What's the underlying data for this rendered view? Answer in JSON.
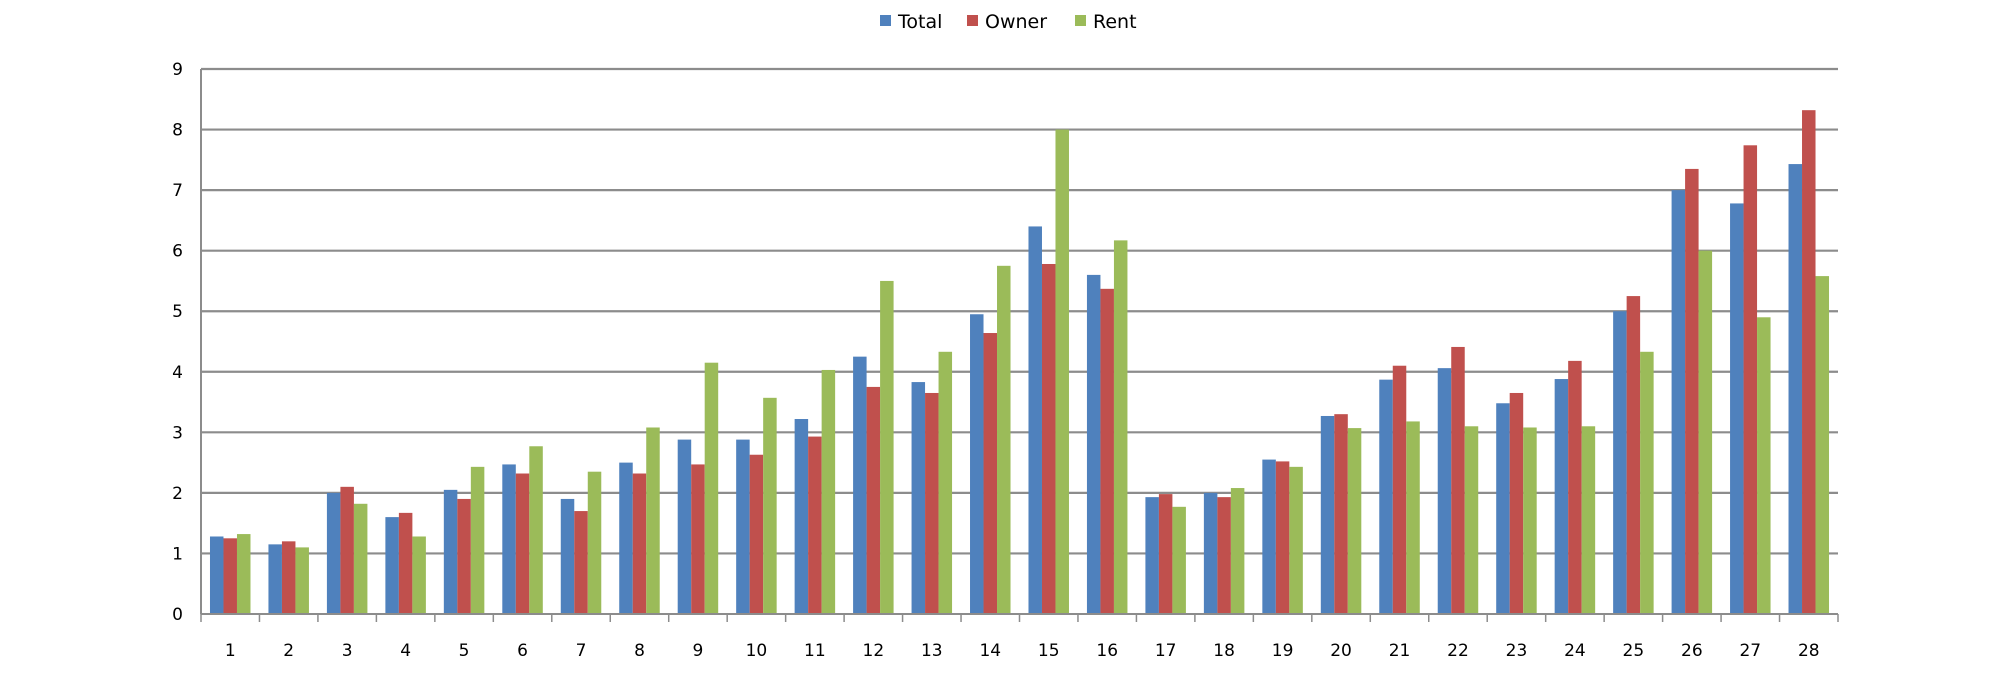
{
  "chart_data": {
    "type": "bar",
    "categories": [
      "1",
      "2",
      "3",
      "4",
      "5",
      "6",
      "7",
      "8",
      "9",
      "10",
      "11",
      "12",
      "13",
      "14",
      "15",
      "16",
      "17",
      "18",
      "19",
      "20",
      "21",
      "22",
      "23",
      "24",
      "25",
      "26",
      "27",
      "28"
    ],
    "series": [
      {
        "name": "Total",
        "color": "#4F81BD",
        "values": [
          1.28,
          1.15,
          2.0,
          1.6,
          2.05,
          2.47,
          1.9,
          2.5,
          2.88,
          2.88,
          3.22,
          4.25,
          3.83,
          4.95,
          6.4,
          5.6,
          1.93,
          2.0,
          2.55,
          3.27,
          3.87,
          4.06,
          3.48,
          3.88,
          5.0,
          7.0,
          6.78,
          7.43
        ]
      },
      {
        "name": "Owner",
        "color": "#C0504D",
        "values": [
          1.25,
          1.2,
          2.1,
          1.67,
          1.9,
          2.32,
          1.7,
          2.32,
          2.47,
          2.63,
          2.93,
          3.75,
          3.65,
          4.64,
          5.78,
          5.37,
          1.98,
          1.93,
          2.52,
          3.3,
          4.1,
          4.41,
          3.65,
          4.18,
          5.25,
          7.35,
          7.74,
          8.32
        ]
      },
      {
        "name": "Rent",
        "color": "#9BBB59",
        "values": [
          1.32,
          1.1,
          1.82,
          1.28,
          2.43,
          2.77,
          2.35,
          3.08,
          4.15,
          3.57,
          4.03,
          5.5,
          4.33,
          5.75,
          8.0,
          6.17,
          1.77,
          2.08,
          2.43,
          3.07,
          3.18,
          3.1,
          3.08,
          3.1,
          4.33,
          6.0,
          4.9,
          5.58
        ]
      }
    ],
    "title": "",
    "xlabel": "",
    "ylabel": "",
    "ylim": [
      0,
      9
    ],
    "yticks": [
      "0",
      "1",
      "2",
      "3",
      "4",
      "5",
      "6",
      "7",
      "8",
      "9"
    ],
    "grid": true,
    "legend_position": "top-center"
  }
}
